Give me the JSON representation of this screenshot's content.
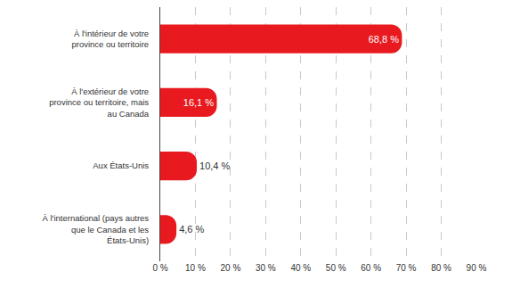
{
  "chart_data": {
    "type": "bar",
    "orientation": "horizontal",
    "categories": [
      "À l'intérieur de votre province ou territoire",
      "À l'extérieur de votre province ou territoire, mais au Canada",
      "Aux États-Unis",
      "À l'international (pays autres que le Canada et les États-Unis)"
    ],
    "values": [
      68.8,
      16.1,
      10.4,
      4.6
    ],
    "value_labels": [
      "68,8 %",
      "16,1 %",
      "10,4 %",
      "4,6 %"
    ],
    "data_labels": true,
    "color": "#e8191f",
    "xlim": [
      0,
      90
    ],
    "xticks": [
      {
        "value": 0,
        "label": "0 %"
      },
      {
        "value": 10,
        "label": "10 %"
      },
      {
        "value": 20,
        "label": "20 %"
      },
      {
        "value": 30,
        "label": "30 %"
      },
      {
        "value": 40,
        "label": "40 %"
      },
      {
        "value": 50,
        "label": "50 %"
      },
      {
        "value": 60,
        "label": "60 %"
      },
      {
        "value": 70,
        "label": "70 %"
      },
      {
        "value": 80,
        "label": "80 %"
      },
      {
        "value": 90,
        "label": "90 %"
      }
    ],
    "grid": true
  }
}
